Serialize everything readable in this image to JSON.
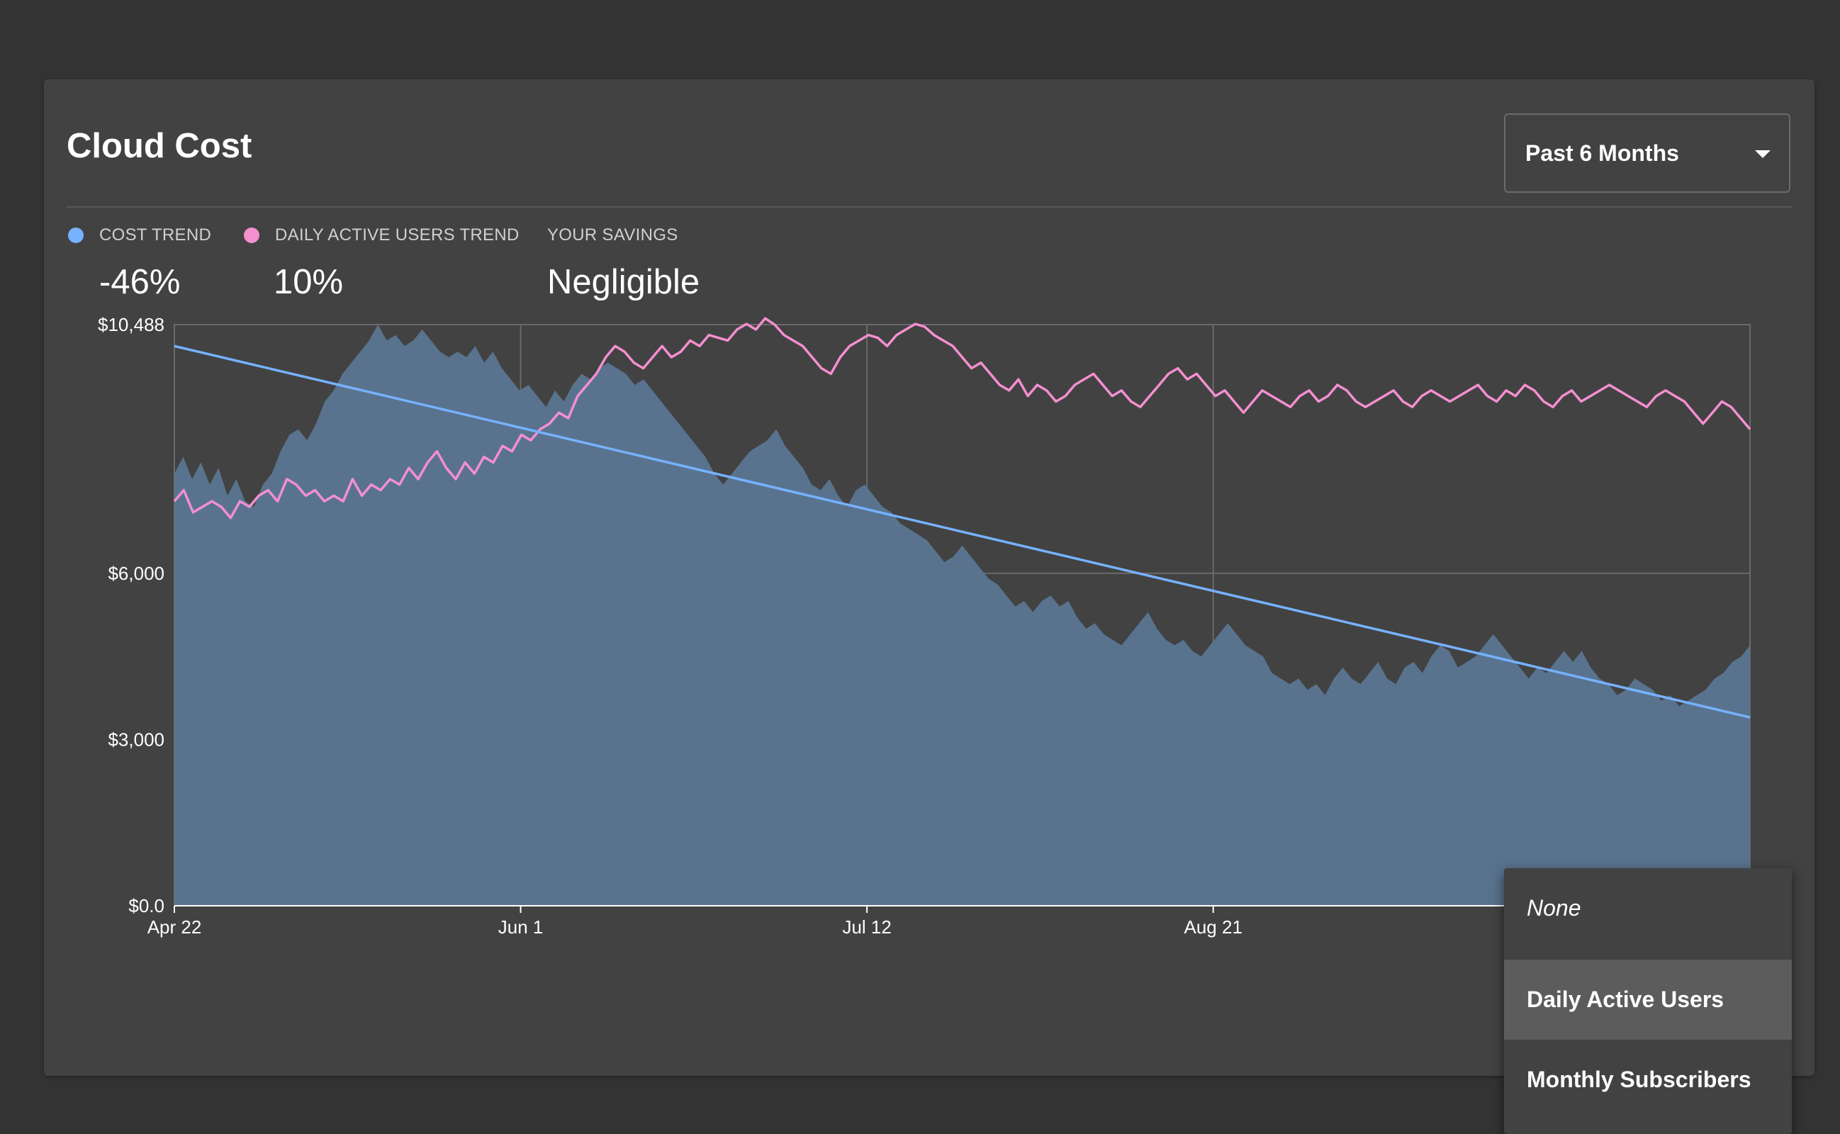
{
  "card": {
    "title": "Cloud Cost",
    "range_select": {
      "value": "Past 6 Months"
    }
  },
  "stats": {
    "cost_trend": {
      "label": "COST TREND",
      "value": "-46%"
    },
    "dau_trend": {
      "label": "DAILY ACTIVE USERS TREND",
      "value": "10%"
    },
    "savings": {
      "label": "YOUR SAVINGS",
      "value": "Negligible"
    }
  },
  "dropdown": {
    "items": [
      "None",
      "Daily Active Users",
      "Monthly Subscribers"
    ],
    "selected": "Daily Active Users"
  },
  "colors": {
    "cost": "#76b2ff",
    "dau": "#f48fd0",
    "area": "#5a7490"
  },
  "chart_data": {
    "type": "area",
    "x_ticks": [
      "Apr 22",
      "Jun 1",
      "Jul 12",
      "Aug 21"
    ],
    "y_ticks": [
      "$10,488",
      "$6,000",
      "$3,000",
      "$0.0"
    ],
    "y_tick_values": [
      10488,
      6000,
      3000,
      0
    ],
    "ylim": [
      0,
      10488
    ],
    "grid": true,
    "series": [
      {
        "kind": "area",
        "values": [
          7800,
          8100,
          7700,
          8000,
          7600,
          7900,
          7400,
          7700,
          7300,
          7200,
          7600,
          7800,
          8200,
          8500,
          8600,
          8400,
          8700,
          9100,
          9300,
          9600,
          9800,
          10000,
          10200,
          10488,
          10200,
          10300,
          10100,
          10200,
          10400,
          10200,
          10000,
          9900,
          10000,
          9900,
          10100,
          9800,
          10000,
          9700,
          9500,
          9300,
          9400,
          9200,
          9000,
          9300,
          9100,
          9400,
          9600,
          9500,
          9700,
          9800,
          9700,
          9600,
          9400,
          9500,
          9300,
          9100,
          8900,
          8700,
          8500,
          8300,
          8100,
          7800,
          7600,
          7800,
          8000,
          8200,
          8300,
          8400,
          8600,
          8300,
          8100,
          7900,
          7600,
          7500,
          7700,
          7400,
          7200,
          7500,
          7600,
          7400,
          7200,
          7100,
          6900,
          6800,
          6700,
          6600,
          6400,
          6200,
          6300,
          6500,
          6300,
          6100,
          5900,
          5800,
          5600,
          5400,
          5500,
          5300,
          5500,
          5600,
          5400,
          5500,
          5200,
          5000,
          5100,
          4900,
          4800,
          4700,
          4900,
          5100,
          5300,
          5000,
          4800,
          4700,
          4800,
          4600,
          4500,
          4700,
          4900,
          5100,
          4900,
          4700,
          4600,
          4500,
          4200,
          4100,
          4000,
          4100,
          3900,
          4000,
          3800,
          4100,
          4300,
          4100,
          4000,
          4200,
          4400,
          4100,
          4000,
          4300,
          4400,
          4200,
          4500,
          4700,
          4600,
          4300,
          4400,
          4500,
          4700,
          4900,
          4700,
          4500,
          4300,
          4100,
          4300,
          4200,
          4400,
          4600,
          4400,
          4600,
          4300,
          4100,
          4000,
          3800,
          3900,
          4100,
          4000,
          3900,
          3700,
          3800,
          3600,
          3700,
          3800,
          3900,
          4100,
          4200,
          4400,
          4500,
          4700
        ],
        "color": "#5a7490"
      },
      {
        "kind": "line",
        "values": [
          7300,
          7500,
          7100,
          7200,
          7300,
          7200,
          7000,
          7300,
          7200,
          7400,
          7500,
          7300,
          7700,
          7600,
          7400,
          7500,
          7300,
          7400,
          7300,
          7700,
          7400,
          7600,
          7500,
          7700,
          7600,
          7900,
          7700,
          8000,
          8200,
          7900,
          7700,
          8000,
          7800,
          8100,
          8000,
          8300,
          8200,
          8500,
          8400,
          8600,
          8700,
          8900,
          8800,
          9200,
          9400,
          9600,
          9900,
          10100,
          10000,
          9800,
          9700,
          9900,
          10100,
          9900,
          10000,
          10200,
          10100,
          10300,
          10250,
          10200,
          10400,
          10500,
          10400,
          10600,
          10488,
          10300,
          10200,
          10100,
          9900,
          9700,
          9600,
          9900,
          10100,
          10200,
          10300,
          10250,
          10100,
          10300,
          10400,
          10500,
          10450,
          10300,
          10200,
          10100,
          9900,
          9700,
          9800,
          9600,
          9400,
          9300,
          9500,
          9200,
          9400,
          9300,
          9100,
          9200,
          9400,
          9500,
          9600,
          9400,
          9200,
          9300,
          9100,
          9000,
          9200,
          9400,
          9600,
          9700,
          9500,
          9600,
          9400,
          9200,
          9300,
          9100,
          8900,
          9100,
          9300,
          9200,
          9100,
          9000,
          9200,
          9300,
          9100,
          9200,
          9400,
          9300,
          9100,
          9000,
          9100,
          9200,
          9300,
          9100,
          9000,
          9200,
          9300,
          9200,
          9100,
          9200,
          9300,
          9400,
          9200,
          9100,
          9300,
          9200,
          9400,
          9300,
          9100,
          9000,
          9200,
          9300,
          9100,
          9200,
          9300,
          9400,
          9300,
          9200,
          9100,
          9000,
          9200,
          9300,
          9200,
          9100,
          8900,
          8700,
          8900,
          9100,
          9000,
          8800,
          8600
        ],
        "color": "#f48fd0"
      },
      {
        "kind": "trendline",
        "values": [
          10100,
          3400
        ],
        "color": "#76b2ff"
      }
    ]
  }
}
